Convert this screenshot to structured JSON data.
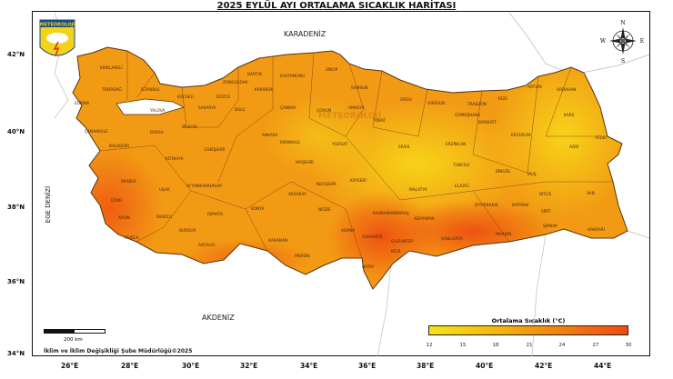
{
  "title": "2025 EYLÜL AYI ORTALAMA SICAKLIK HARİTASI",
  "logo_text": "METEOROLOJİ",
  "watermark": "METEOROLOJİ",
  "compass": {
    "n": "N",
    "s": "S",
    "e": "E",
    "w": "W"
  },
  "seas": {
    "north": "KARADENİZ",
    "south": "AKDENİZ",
    "west": "EGE DENİZİ"
  },
  "lat_labels": [
    "42°N",
    "40°N",
    "38°N",
    "36°N",
    "34°N"
  ],
  "lon_labels": [
    "26°E",
    "28°E",
    "30°E",
    "32°E",
    "34°E",
    "36°E",
    "38°E",
    "40°E",
    "42°E",
    "44°E"
  ],
  "legend": {
    "title": "Ortalama Sıcaklık (°C)",
    "ticks": [
      "12",
      "15",
      "18",
      "21",
      "24",
      "27",
      "30"
    ],
    "colors": [
      "#f7e21a",
      "#f5b80a",
      "#f39a10",
      "#f27a10",
      "#ef4a10"
    ]
  },
  "scale_bar": "200 km",
  "credit": "İklim ve İklim Değişikliği Şube Müdürlüğü©2025",
  "provinces": [
    "KIRKLARELİ",
    "EDİRNE",
    "TEKİRDAĞ",
    "İSTANBUL",
    "KOCAELİ",
    "SAKARYA",
    "DÜZCE",
    "ZONGULDAK",
    "BARTIN",
    "KASTAMONU",
    "SİNOP",
    "KARABÜK",
    "BOLU",
    "ÇANKIRI",
    "ÇORUM",
    "SAMSUN",
    "AMASYA",
    "TOKAT",
    "ORDU",
    "GİRESUN",
    "TRABZON",
    "RİZE",
    "ARTVİN",
    "ARDAHAN",
    "KARS",
    "IĞDIR",
    "GÜMÜŞHANE",
    "BAYBURT",
    "ERZURUM",
    "ERZİNCAN",
    "AĞRI",
    "SİVAS",
    "YOZGAT",
    "KIRIKKALE",
    "ANKARA",
    "ESKİŞEHİR",
    "BİLECİK",
    "BURSA",
    "YALOVA",
    "ÇANAKKALE",
    "BALIKESİR",
    "KÜTAHYA",
    "MANİSA",
    "UŞAK",
    "AFYONKARAHİSAR",
    "İZMİR",
    "AYDIN",
    "DENİZLİ",
    "MUĞLA",
    "BURDUR",
    "ISPARTA",
    "ANTALYA",
    "KONYA",
    "KARAMAN",
    "MERSİN",
    "AKSARAY",
    "NİĞDE",
    "NEVŞEHİR",
    "KIRŞEHİR",
    "KAYSERİ",
    "ADANA",
    "OSMANİYE",
    "HATAY",
    "GAZİANTEP",
    "KİLİS",
    "KAHRAMANMARAŞ",
    "ADIYAMAN",
    "MALATYA",
    "ŞANLIURFA",
    "DİYARBAKIR",
    "MARDİN",
    "BATMAN",
    "SİİRT",
    "ŞIRNAK",
    "HAKKARİ",
    "VAN",
    "BİTLİS",
    "MUŞ",
    "BİNGÖL",
    "TUNCELİ",
    "ELAZIĞ"
  ]
}
